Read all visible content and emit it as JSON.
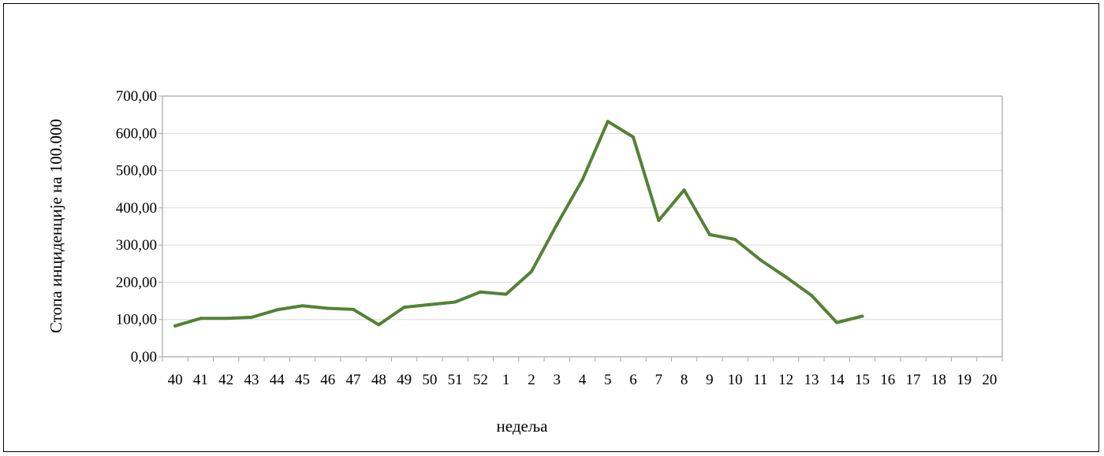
{
  "chart_data": {
    "type": "line",
    "title": "",
    "xlabel": "недеља",
    "ylabel": "Стопа инциденције  на 100.000",
    "categories": [
      "40",
      "41",
      "42",
      "43",
      "44",
      "45",
      "46",
      "47",
      "48",
      "49",
      "50",
      "51",
      "52",
      "1",
      "2",
      "3",
      "4",
      "5",
      "6",
      "7",
      "8",
      "9",
      "10",
      "11",
      "12",
      "13",
      "14",
      "15",
      "16",
      "17",
      "18",
      "19",
      "20"
    ],
    "series": [
      {
        "values": [
          83,
          103,
          103,
          106,
          126,
          137,
          130,
          127,
          86,
          133,
          140,
          147,
          174,
          168,
          229,
          355,
          475,
          632,
          590,
          366,
          448,
          328,
          315,
          260,
          214,
          165,
          92,
          109,
          null,
          null,
          null,
          null,
          null
        ]
      }
    ],
    "yticks": [
      "0,00",
      "100,00",
      "200,00",
      "300,00",
      "400,00",
      "500,00",
      "600,00",
      "700,00"
    ],
    "ylim": [
      0,
      700
    ],
    "grid": true,
    "legend": "none",
    "colors": {
      "line": "#548235",
      "grid": "#d9d9d9",
      "axis": "#a6a6a6"
    }
  }
}
